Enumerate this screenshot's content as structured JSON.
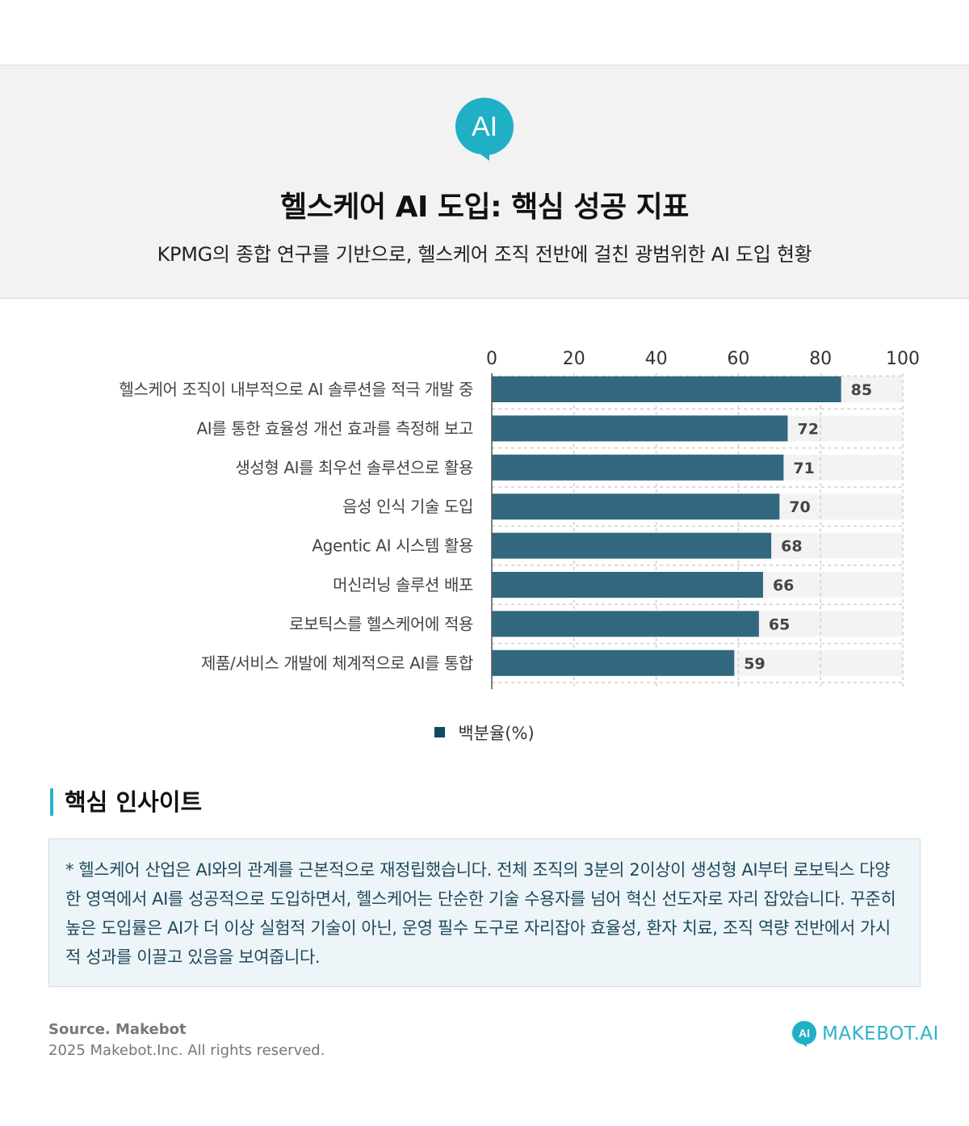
{
  "header": {
    "logo_text": "AI",
    "logo_color": "#1fb0c6",
    "title": "헬스케어 AI 도입: 핵심 성공 지표",
    "subtitle": "KPMG의 종합 연구를 기반으로, 헬스케어 조직 전반에 걸친 광범위한 AI 도입 현황"
  },
  "chart_data": {
    "type": "bar",
    "orientation": "horizontal",
    "categories": [
      "헬스케어 조직이 내부적으로 AI 솔루션을 적극 개발 중",
      "AI를 통한 효율성 개선 효과를 측정해 보고",
      "생성형 AI를 최우선 솔루션으로 활용",
      "음성 인식 기술 도입",
      "Agentic AI 시스템 활용",
      "머신러닝 솔루션 배포",
      "로보틱스를 헬스케어에 적용",
      "제품/서비스 개발에 체계적으로 AI를 통합"
    ],
    "series": [
      {
        "name": "백분율(%)",
        "values": [
          85,
          72,
          71,
          70,
          68,
          66,
          65,
          59
        ]
      }
    ],
    "xlim": [
      0,
      100
    ],
    "xticks": [
      0,
      20,
      40,
      60,
      80,
      100
    ],
    "axis_position": "top",
    "grid": true,
    "legend_position": "bottom",
    "bar_color": "#316880",
    "track_color": "#f3f3f3"
  },
  "legend": {
    "label": "백분율(%)",
    "color": "#0f4c63"
  },
  "insights": {
    "heading": "핵심 인사이트",
    "accent_color": "#2bb3c9",
    "body": "* 헬스케어 산업은 AI와의 관계를 근본적으로 재정립했습니다. 전체 조직의 3분의 2이상이 생성형 AI부터 로보틱스 다양한 영역에서 AI를 성공적으로 도입하면서, 헬스케어는 단순한 기술 수용자를 넘어 혁신 선도자로 자리 잡았습니다. 꾸준히 높은 도입률은 AI가 더 이상 실험적 기술이 아닌, 운영 필수 도구로 자리잡아 효율성, 환자 치료, 조직 역량 전반에서 가시적 성과를 이끌고 있음을 보여줍니다."
  },
  "footer": {
    "source": "Source. Makebot",
    "copyright": "2025 Makebot.Inc. All rights reserved.",
    "brand_icon_text": "AI",
    "brand_name": "MAKEBOT.AI"
  }
}
